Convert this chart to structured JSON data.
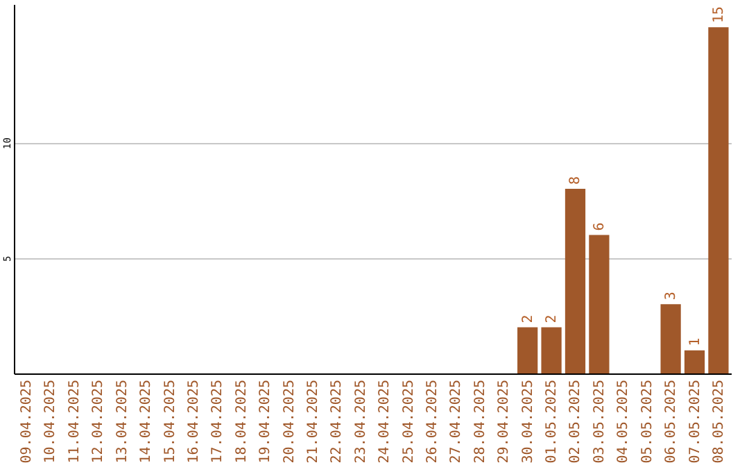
{
  "chart_data": {
    "type": "bar",
    "categories": [
      "09.04.2025",
      "10.04.2025",
      "11.04.2025",
      "12.04.2025",
      "13.04.2025",
      "14.04.2025",
      "15.04.2025",
      "16.04.2025",
      "17.04.2025",
      "18.04.2025",
      "19.04.2025",
      "20.04.2025",
      "21.04.2025",
      "22.04.2025",
      "23.04.2025",
      "24.04.2025",
      "25.04.2025",
      "26.04.2025",
      "27.04.2025",
      "28.04.2025",
      "29.04.2025",
      "30.04.2025",
      "01.05.2025",
      "02.05.2025",
      "03.05.2025",
      "04.05.2025",
      "05.05.2025",
      "06.05.2025",
      "07.05.2025",
      "08.05.2025"
    ],
    "values": [
      0,
      0,
      0,
      0,
      0,
      0,
      0,
      0,
      0,
      0,
      0,
      0,
      0,
      0,
      0,
      0,
      0,
      0,
      0,
      0,
      0,
      2,
      2,
      8,
      6,
      0,
      0,
      3,
      1,
      15
    ],
    "value_labels": [
      null,
      null,
      null,
      null,
      null,
      null,
      null,
      null,
      null,
      null,
      null,
      null,
      null,
      null,
      null,
      null,
      null,
      null,
      null,
      null,
      null,
      "2",
      "2",
      "8",
      "6",
      null,
      null,
      "3",
      "1",
      "15"
    ],
    "color": "#a0582a",
    "ylim": [
      0,
      16
    ],
    "yticks": [
      5,
      10
    ],
    "grid": "y"
  }
}
